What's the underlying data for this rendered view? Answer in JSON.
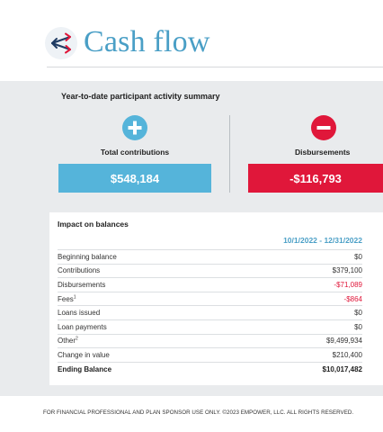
{
  "header": {
    "title": "Cash flow",
    "icon": "cash-flow-arrows-icon",
    "accent_color": "#4a9fc6"
  },
  "summary": {
    "title": "Year-to-date participant activity summary",
    "contributions": {
      "icon": "plus-circle-icon",
      "label": "Total contributions",
      "value": "$548,184",
      "color": "#55b4da"
    },
    "disbursements": {
      "icon": "minus-circle-icon",
      "label": "Disbursements",
      "value": "-$116,793",
      "color": "#e0173a"
    }
  },
  "impact": {
    "title": "Impact on balances",
    "period": "10/1/2022 - 12/31/2022",
    "rows": [
      {
        "label": "Beginning balance",
        "footnote": "",
        "value": "$0",
        "negative": false
      },
      {
        "label": "Contributions",
        "footnote": "",
        "value": "$379,100",
        "negative": false
      },
      {
        "label": "Disbursements",
        "footnote": "",
        "value": "-$71,089",
        "negative": true
      },
      {
        "label": "Fees",
        "footnote": "1",
        "value": "-$864",
        "negative": true
      },
      {
        "label": "Loans issued",
        "footnote": "",
        "value": "$0",
        "negative": false
      },
      {
        "label": "Loan payments",
        "footnote": "",
        "value": "$0",
        "negative": false
      },
      {
        "label": "Other",
        "footnote": "2",
        "value": "$9,499,934",
        "negative": false
      },
      {
        "label": "Change in value",
        "footnote": "",
        "value": "$210,400",
        "negative": false
      },
      {
        "label": "Ending Balance",
        "footnote": "",
        "value": "$10,017,482",
        "negative": false
      }
    ]
  },
  "footer": {
    "disclaimer": "FOR FINANCIAL PROFESSIONAL AND PLAN SPONSOR USE ONLY. ©2023 EMPOWER, LLC. ALL RIGHTS RESERVED."
  }
}
